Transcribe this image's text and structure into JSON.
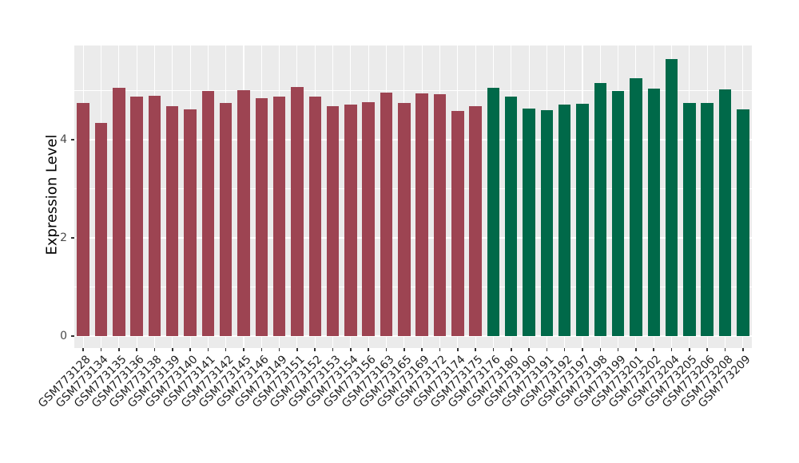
{
  "figure": {
    "background": "#FFFFFF",
    "panel_background": "#EBEBEB",
    "gridline_color": "#FFFFFF",
    "tick_color": "#333333",
    "axis_text_color": "#1F1F1F"
  },
  "chart_data": {
    "type": "bar",
    "title": "",
    "xlabel": "",
    "ylabel": "Expression Level",
    "ylim": [
      -0.25,
      5.95
    ],
    "yticks": [
      0,
      2,
      4
    ],
    "yticks_minor": [
      1,
      3,
      5
    ],
    "grid": "on",
    "legend": "none",
    "bar_colors": {
      "group1": "#9D4452",
      "group2": "#006949"
    },
    "categories": [
      "GSM773128",
      "GSM773134",
      "GSM773135",
      "GSM773136",
      "GSM773138",
      "GSM773139",
      "GSM773140",
      "GSM773141",
      "GSM773142",
      "GSM773145",
      "GSM773146",
      "GSM773149",
      "GSM773151",
      "GSM773152",
      "GSM773153",
      "GSM773154",
      "GSM773156",
      "GSM773163",
      "GSM773165",
      "GSM773169",
      "GSM773172",
      "GSM773174",
      "GSM773175",
      "GSM773176",
      "GSM773180",
      "GSM773190",
      "GSM773191",
      "GSM773192",
      "GSM773197",
      "GSM773198",
      "GSM773199",
      "GSM773201",
      "GSM773202",
      "GSM773204",
      "GSM773205",
      "GSM773206",
      "GSM773208",
      "GSM773209"
    ],
    "values": [
      4.74,
      4.34,
      5.05,
      4.87,
      4.9,
      4.69,
      4.62,
      5.0,
      4.74,
      5.01,
      4.85,
      4.88,
      5.08,
      4.88,
      4.69,
      4.72,
      4.77,
      4.96,
      4.74,
      4.94,
      4.92,
      4.58,
      4.69,
      5.06,
      4.88,
      4.63,
      4.6,
      4.72,
      4.73,
      5.15,
      5.0,
      5.25,
      5.04,
      5.64,
      4.75,
      4.75,
      5.02,
      4.62
    ],
    "groups": [
      "group1",
      "group1",
      "group1",
      "group1",
      "group1",
      "group1",
      "group1",
      "group1",
      "group1",
      "group1",
      "group1",
      "group1",
      "group1",
      "group1",
      "group1",
      "group1",
      "group1",
      "group1",
      "group1",
      "group1",
      "group1",
      "group1",
      "group1",
      "group2",
      "group2",
      "group2",
      "group2",
      "group2",
      "group2",
      "group2",
      "group2",
      "group2",
      "group2",
      "group2",
      "group2",
      "group2",
      "group2",
      "group2"
    ]
  }
}
